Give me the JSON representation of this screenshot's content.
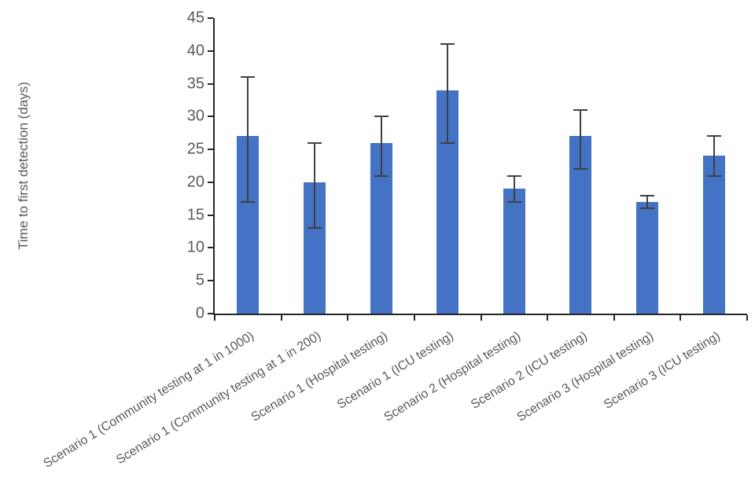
{
  "chart_data": {
    "type": "bar",
    "title": "",
    "xlabel": "",
    "ylabel": "Time to first detection (days)",
    "ylim": [
      0,
      45
    ],
    "ytick_step": 5,
    "yticks": [
      0,
      5,
      10,
      15,
      20,
      25,
      30,
      35,
      40,
      45
    ],
    "grid": false,
    "legend": null,
    "bar_color": "#4472C4",
    "error_bar_color": "#404040",
    "axis_color": "#262626",
    "tick_label_color": "#595959",
    "categories": [
      "Scenario 1 (Community testing at 1 in 1000)",
      "Scenario 1 (Community testing at 1 in 200)",
      "Scenario 1 (Hospital testing)",
      "Scenario 1 (ICU testing)",
      "Scenario 2 (Hospital testing)",
      "Scenario 2 (ICU testing)",
      "Scenario 3 (Hospital testing)",
      "Scenario 3 (ICU testing)"
    ],
    "values": [
      27,
      20,
      26,
      34,
      19,
      27,
      17,
      24
    ],
    "error_low": [
      17,
      13,
      21,
      26,
      17,
      22,
      16,
      21
    ],
    "error_high": [
      36,
      26,
      30,
      41,
      21,
      31,
      18,
      27
    ]
  }
}
